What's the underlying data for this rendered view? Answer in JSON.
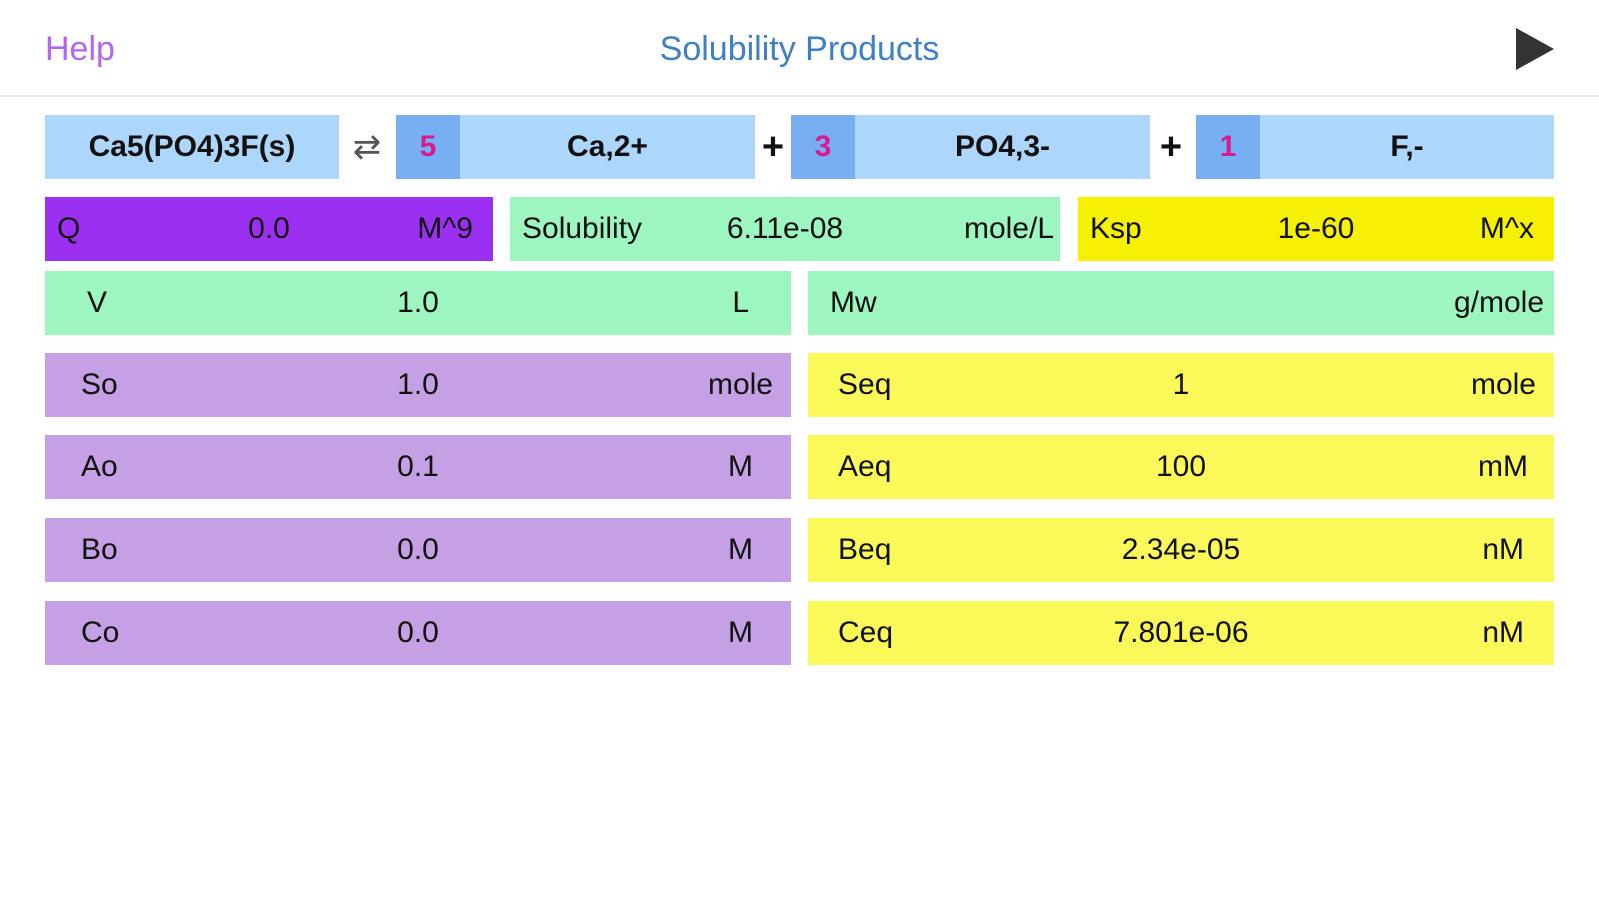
{
  "nav": {
    "help_label": "Help",
    "title": "Solubility Products",
    "play_icon": "play-icon"
  },
  "equation": {
    "solid": "Ca5(PO4)3F(s)",
    "arrow_icon": "equilibrium-arrows-icon",
    "arrow_glyph": "⇄",
    "plus": "+",
    "products": [
      {
        "coef": "5",
        "ion": "Ca,2+"
      },
      {
        "coef": "3",
        "ion": "PO4,3-"
      },
      {
        "coef": "1",
        "ion": "F,-"
      }
    ]
  },
  "stats": {
    "q": {
      "label": "Q",
      "value": "0.0",
      "unit": "M^9"
    },
    "solubility": {
      "label": "Solubility",
      "value": "6.11e-08",
      "unit": "mole/L"
    },
    "ksp": {
      "label": "Ksp",
      "value": "1e-60",
      "unit": "M^x"
    }
  },
  "left_fields": [
    {
      "label": "V",
      "value": "1.0",
      "unit": "L"
    },
    {
      "label": "So",
      "value": "1.0",
      "unit": "mole"
    },
    {
      "label": "Ao",
      "value": "0.1",
      "unit": "M"
    },
    {
      "label": "Bo",
      "value": "0.0",
      "unit": "M"
    },
    {
      "label": "Co",
      "value": "0.0",
      "unit": "M"
    }
  ],
  "right_fields": [
    {
      "label": "Mw",
      "value": "",
      "unit": "g/mole"
    },
    {
      "label": "Seq",
      "value": "1",
      "unit": "mole"
    },
    {
      "label": "Aeq",
      "value": "100",
      "unit": "mM"
    },
    {
      "label": "Beq",
      "value": "2.34e-05",
      "unit": "nM"
    },
    {
      "label": "Ceq",
      "value": "7.801e-06",
      "unit": "nM"
    }
  ],
  "colors": {
    "help": "#b267ee",
    "title": "#3f7fc4",
    "species": "#acd6fb",
    "coefficient": "#78aef2",
    "coefficient_text": "#d81b8c",
    "q_box": "#9b30f2",
    "solubility_box": "#9df5bf",
    "ksp_box": "#f6f004",
    "input_purple": "#c6a0e4",
    "input_green": "#9df5bf",
    "output_yellow": "#fbf85a"
  }
}
